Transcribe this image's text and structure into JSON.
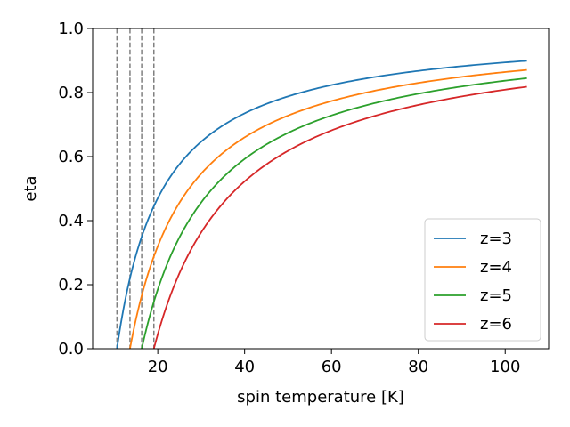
{
  "chart_data": {
    "type": "line",
    "title": "",
    "xlabel": "spin temperature [K]",
    "ylabel": "eta",
    "xlim": [
      5,
      110
    ],
    "ylim": [
      0.0,
      1.0
    ],
    "x_range": [
      10.5,
      105
    ],
    "xticks": [
      20,
      40,
      60,
      80,
      100
    ],
    "yticks": [
      0.0,
      0.2,
      0.4,
      0.6,
      0.8,
      1.0
    ],
    "xtick_labels": [
      "20",
      "40",
      "60",
      "80",
      "100"
    ],
    "ytick_labels": [
      "0.0",
      "0.2",
      "0.4",
      "0.6",
      "0.8",
      "1.0"
    ],
    "grid": false,
    "legend_position": "lower right",
    "reference_lines": [
      {
        "style": "dashed",
        "color": "#808080",
        "x": 10.6
      },
      {
        "style": "dashed",
        "color": "#808080",
        "x": 13.6
      },
      {
        "style": "dashed",
        "color": "#808080",
        "x": 16.3
      },
      {
        "style": "dashed",
        "color": "#808080",
        "x": 19.1
      }
    ],
    "series": [
      {
        "name": "z=3",
        "color": "#1f77b4",
        "x0": 10.6
      },
      {
        "name": "z=4",
        "color": "#ff7f0e",
        "x0": 13.6
      },
      {
        "name": "z=5",
        "color": "#2ca02c",
        "x0": 16.3
      },
      {
        "name": "z=6",
        "color": "#d62728",
        "x0": 19.1
      }
    ]
  }
}
